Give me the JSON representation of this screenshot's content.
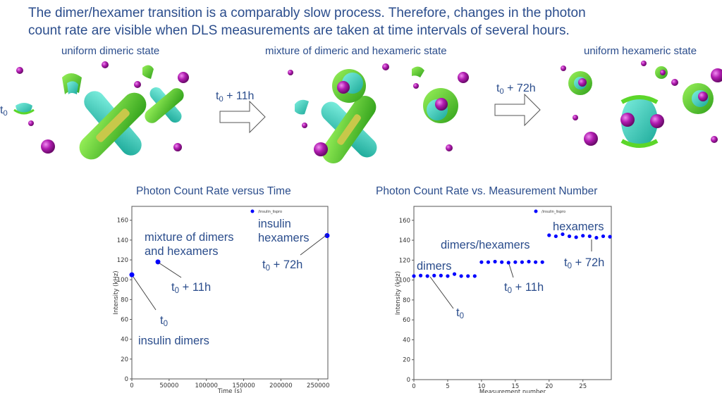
{
  "intro": {
    "line1": "The dimer/hexamer transition is a comparably slow process. Therefore, changes in the photon",
    "line2": "count rate are visible when DLS measurements are taken at time intervals of several hours."
  },
  "illustration": {
    "state1": "uniform dimeric state",
    "state2": "mixture of dimeric and hexameric state",
    "state3": "uniform hexameric state",
    "t0": "t",
    "t0_sub": "0",
    "arrow1": " + 11h",
    "arrow2": " + 72h"
  },
  "annotations": {
    "left": {
      "mixture1": "mixture  of dimers",
      "mixture2": "and hexamers",
      "t11": " + 11h",
      "insulin_hex1": "insulin",
      "insulin_hex2": "hexamers",
      "t72": " + 72h",
      "insulin_dimers": "insulin  dimers"
    },
    "right": {
      "dimers": "dimers",
      "dimers_hexamers": "dimers/hexamers",
      "hexamers": "hexamers",
      "t11": " + 11h",
      "t72": " + 72h"
    }
  },
  "colors": {
    "text": "#2b4d8c",
    "points": "#0000ff",
    "sphere": "#b01cb0",
    "protein_green": "#5cd62a",
    "protein_cyan": "#30cfb8"
  },
  "chart_data": [
    {
      "type": "scatter",
      "title": "Photon Count Rate versus Time",
      "xlabel": "Time (s)",
      "ylabel": "Intensity (kHz)",
      "xlim": [
        0,
        263000
      ],
      "ylim": [
        0,
        174
      ],
      "xticks": [
        0,
        50000,
        100000,
        150000,
        200000,
        250000
      ],
      "yticks": [
        0,
        20,
        40,
        60,
        80,
        100,
        120,
        140,
        160
      ],
      "legend": {
        "label": "/insulin_lispro",
        "placement": "top-right"
      },
      "series": [
        {
          "name": "/insulin_lispro",
          "x": [
            0,
            35000,
            262000
          ],
          "y": [
            105,
            118,
            144.5
          ]
        }
      ]
    },
    {
      "type": "scatter",
      "title": "Photon Count Rate vs. Measurement Number",
      "xlabel": "Measurement number",
      "ylabel": "Intensity (kHz)",
      "xlim": [
        0,
        29.2
      ],
      "ylim": [
        0,
        174
      ],
      "xticks": [
        0,
        5,
        10,
        15,
        20,
        25
      ],
      "yticks": [
        0,
        20,
        40,
        60,
        80,
        100,
        120,
        140,
        160
      ],
      "legend": {
        "label": "/insulin_lispro",
        "placement": "top-right"
      },
      "series": [
        {
          "name": "/insulin_lispro",
          "x": [
            0,
            1,
            2,
            3,
            4,
            5,
            6,
            7,
            8,
            9,
            10,
            11,
            12,
            13,
            14,
            15,
            16,
            17,
            18,
            19,
            20,
            21,
            22,
            23,
            24,
            25,
            26,
            27,
            28,
            29
          ],
          "y": [
            104,
            104.5,
            104,
            104.5,
            104.5,
            104,
            106,
            104,
            104,
            104,
            118,
            118,
            118.5,
            118,
            117.5,
            118,
            118,
            118.5,
            118,
            118,
            145,
            144,
            146,
            144,
            143,
            144.5,
            144,
            142.5,
            144,
            143.5
          ]
        }
      ]
    }
  ]
}
